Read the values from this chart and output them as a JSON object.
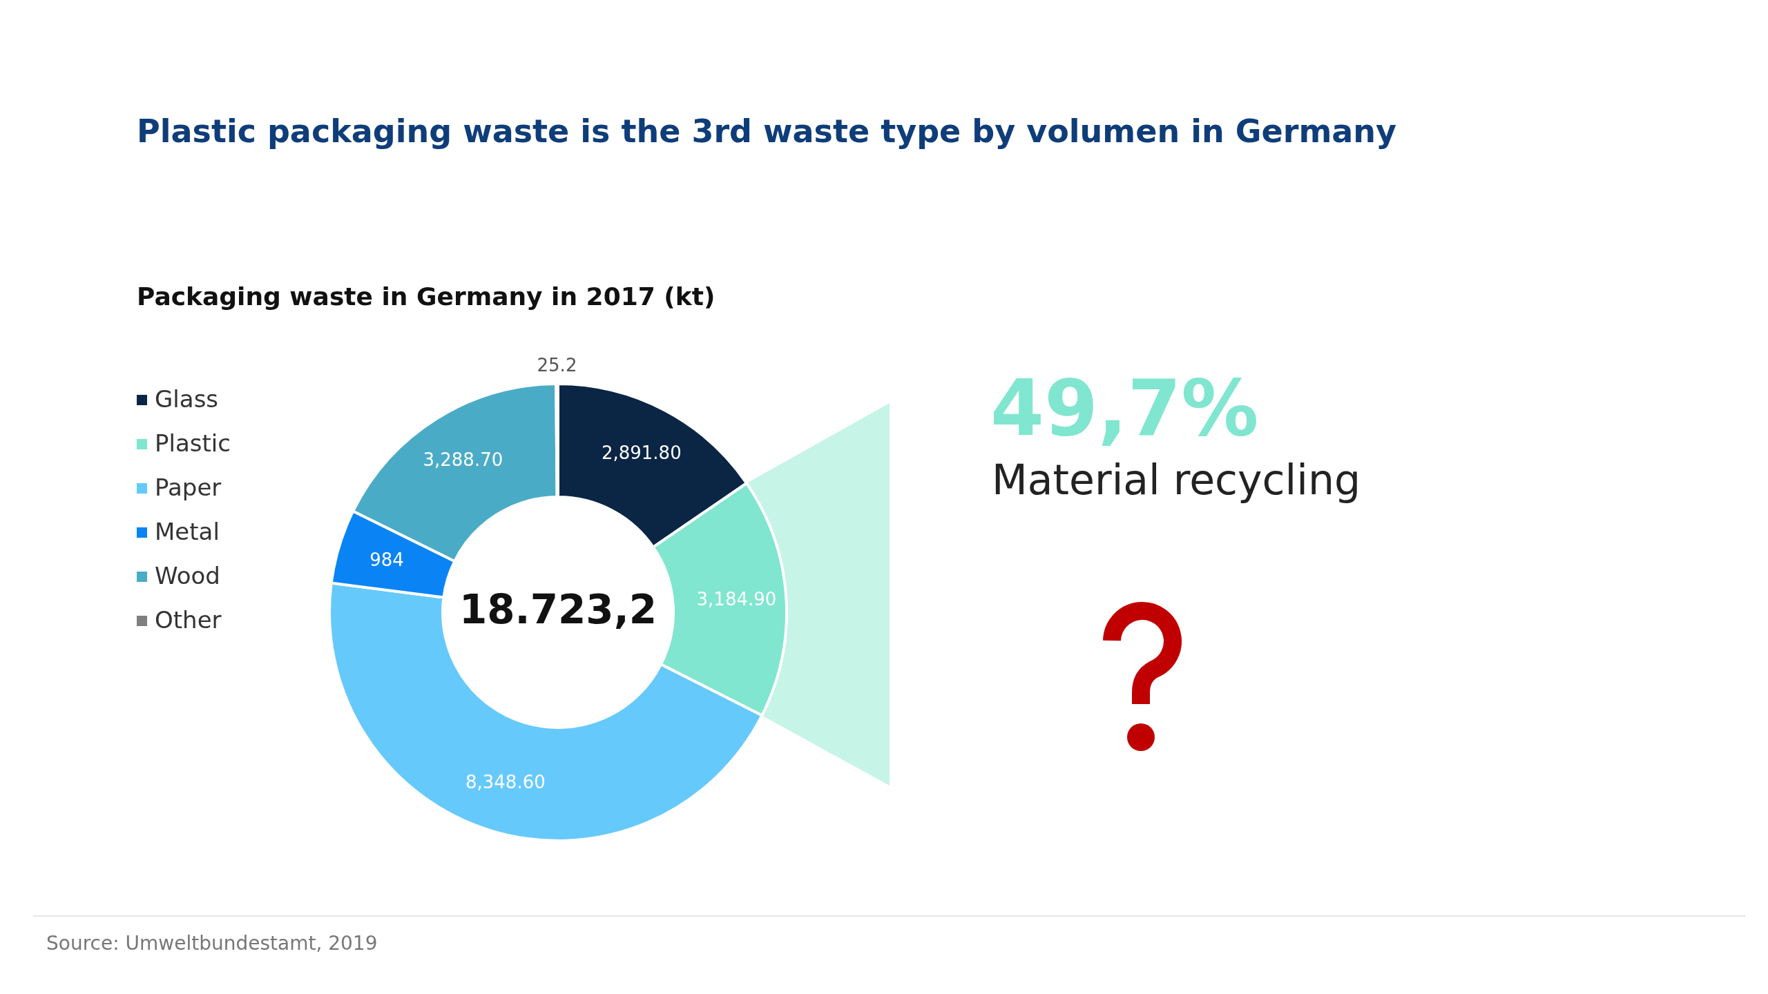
{
  "chart_data": {
    "type": "donut",
    "title": "Plastic packaging waste is the 3rd waste type by volumen in Germany",
    "subtitle": "Packaging waste in Germany in 2017 (kt)",
    "categories": [
      "Glass",
      "Plastic",
      "Paper",
      "Metal",
      "Wood",
      "Other"
    ],
    "values": [
      2891.8,
      3184.9,
      8348.6,
      984,
      3288.7,
      25.2
    ],
    "value_labels": [
      "2,891.80",
      "3,184.90",
      "8,348.60",
      "984",
      "3,288.70",
      "25.2"
    ],
    "colors": [
      "#0b2545",
      "#80e6cf",
      "#66c9fc",
      "#0a84f5",
      "#4aabc6",
      "#7f7f7f"
    ],
    "legend": "left",
    "annotations": [
      "18.723,2",
      "49,7%",
      "Material recycling",
      "Source: Umweltbundestamt, 2019"
    ]
  }
}
